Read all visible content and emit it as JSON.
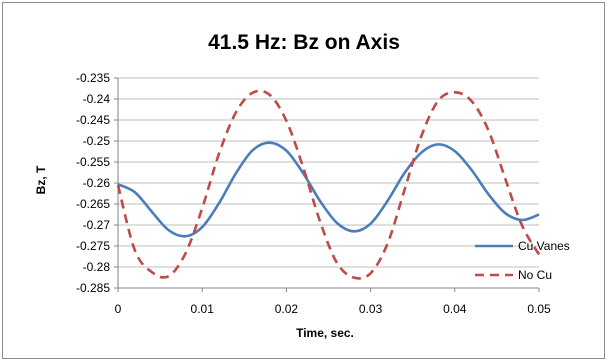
{
  "chart_data": {
    "type": "line",
    "title": "41.5 Hz: Bz on Axis",
    "xlabel": "Time, sec.",
    "ylabel": "Bz, T",
    "xlim": [
      0,
      0.05
    ],
    "ylim": [
      -0.285,
      -0.235
    ],
    "xticks": [
      "0",
      "0.01",
      "0.02",
      "0.03",
      "0.04",
      "0.05"
    ],
    "yticks": [
      "-0.235",
      "-0.24",
      "-0.245",
      "-0.25",
      "-0.255",
      "-0.26",
      "-0.265",
      "-0.27",
      "-0.275",
      "-0.28",
      "-0.285"
    ],
    "grid": "horizontal",
    "legend_position": "right",
    "series": [
      {
        "name": "Cu Vanes",
        "color": "#4a7ebb",
        "style": "solid",
        "x": [
          0,
          0.002,
          0.004,
          0.006,
          0.008,
          0.01,
          0.012,
          0.014,
          0.016,
          0.018,
          0.02,
          0.022,
          0.024,
          0.026,
          0.028,
          0.03,
          0.032,
          0.034,
          0.036,
          0.038,
          0.04,
          0.042,
          0.044,
          0.046,
          0.048,
          0.05
        ],
        "y": [
          -0.2603,
          -0.2622,
          -0.2668,
          -0.2712,
          -0.2727,
          -0.2705,
          -0.2648,
          -0.2577,
          -0.2522,
          -0.2504,
          -0.2523,
          -0.2577,
          -0.2643,
          -0.2695,
          -0.2715,
          -0.2697,
          -0.2643,
          -0.2577,
          -0.2528,
          -0.2508,
          -0.2524,
          -0.2569,
          -0.2627,
          -0.2672,
          -0.2688,
          -0.2675
        ]
      },
      {
        "name": "No Cu",
        "color": "#be4b48",
        "style": "dashed",
        "x": [
          0,
          0.002,
          0.004,
          0.006,
          0.008,
          0.01,
          0.012,
          0.014,
          0.016,
          0.018,
          0.02,
          0.022,
          0.024,
          0.026,
          0.028,
          0.03,
          0.032,
          0.034,
          0.036,
          0.038,
          0.04,
          0.042,
          0.044,
          0.046,
          0.048,
          0.05
        ],
        "y": [
          -0.2605,
          -0.276,
          -0.2812,
          -0.2822,
          -0.2768,
          -0.266,
          -0.253,
          -0.2432,
          -0.2385,
          -0.239,
          -0.2452,
          -0.2563,
          -0.2692,
          -0.279,
          -0.2825,
          -0.2815,
          -0.2745,
          -0.2618,
          -0.249,
          -0.2405,
          -0.2384,
          -0.2405,
          -0.2475,
          -0.259,
          -0.2702,
          -0.277
        ]
      }
    ]
  }
}
